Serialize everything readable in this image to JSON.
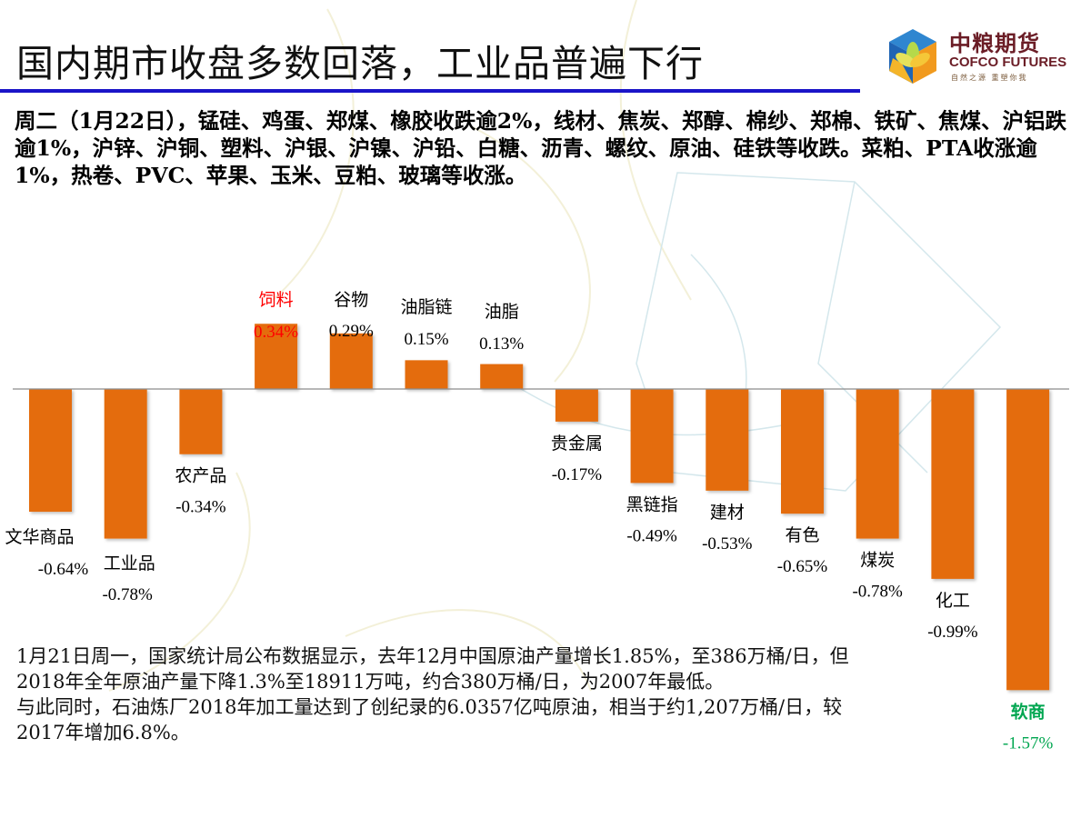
{
  "header": {
    "title": "国内期市收盘多数回落，工业品普遍下行",
    "rule_color": "#1a14c8"
  },
  "logo": {
    "name_cn": "中粮期货",
    "name_en": "COFCO FUTURES",
    "tagline": "自然之源 重塑你我"
  },
  "summary": {
    "text": "周二（1月22日），锰硅、鸡蛋、郑煤、橡胶收跌逾2%，线材、焦炭、郑醇、棉纱、郑棉、铁矿、焦煤、沪铝跌逾1%，沪锌、沪铜、塑料、沪银、沪镍、沪铅、白糖、沥青、螺纹、原油、硅铁等收跌。菜粕、PTA收涨逾1%，热卷、PVC、苹果、玉米、豆粕、玻璃等收涨。"
  },
  "note": {
    "paragraphs": [
      "1月21日周一，国家统计局公布数据显示，去年12月中国原油产量增长1.85%，至386万桶/日，但2018年全年原油产量下降1.3%至18911万吨，约合380万桶/日，为2007年最低。",
      "与此同时，石油炼厂2018年加工量达到了创纪录的6.0357亿吨原油，相当于约1,207万桶/日，较2017年增加6.8%。"
    ]
  },
  "chart_data": {
    "type": "bar",
    "title": "",
    "xlabel": "",
    "ylabel": "",
    "unit": "%",
    "categories": [
      "文华商品",
      "工业品",
      "农产品",
      "饲料",
      "谷物",
      "油脂链",
      "油脂",
      "贵金属",
      "黑链指",
      "建材",
      "有色",
      "煤炭",
      "化工",
      "软商"
    ],
    "values": [
      -0.64,
      -0.78,
      -0.34,
      0.34,
      0.29,
      0.15,
      0.13,
      -0.17,
      -0.49,
      -0.53,
      -0.65,
      -0.78,
      -0.99,
      -1.57
    ],
    "value_labels": [
      "-0.64%",
      "-0.78%",
      "-0.34%",
      "0.34%",
      "0.29%",
      "0.15%",
      "0.13%",
      "-0.17%",
      "-0.49%",
      "-0.53%",
      "-0.65%",
      "-0.78%",
      "-0.99%",
      "-1.57%"
    ],
    "highlight": {
      "max": "饲料",
      "min": "软商"
    },
    "ylim": [
      -1.57,
      0.34
    ],
    "grid": false,
    "axis_visible": false,
    "legend": "none",
    "colors": {
      "bar": "#e46c0a",
      "baseline": "#8c8c8c",
      "label": "#000000",
      "label_max": "#ff0000",
      "label_min": "#00a650"
    }
  }
}
